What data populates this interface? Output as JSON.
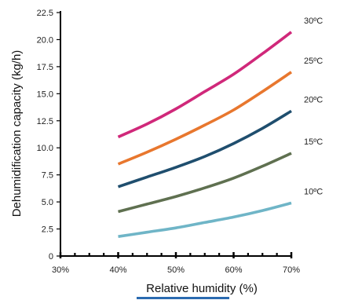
{
  "chart_data": {
    "type": "line",
    "xlabel": "Relative humidity (%)",
    "ylabel": "Dehumidification capacity (kg/h)",
    "xlim": [
      30,
      70
    ],
    "ylim": [
      0,
      22.5
    ],
    "x_tick_labels": [
      "30%",
      "40%",
      "50%",
      "60%",
      "70%"
    ],
    "y_tick_labels": [
      "0",
      "2.5",
      "5.0",
      "7.5",
      "10.0",
      "12.5",
      "15.0",
      "17.5",
      "20.0",
      "22.5"
    ],
    "grid": false,
    "x": [
      40,
      45,
      50,
      55,
      60,
      65,
      70
    ],
    "series": [
      {
        "name": "30ºC",
        "color": "#d0287a",
        "values": [
          11.0,
          12.2,
          13.6,
          15.2,
          16.8,
          18.7,
          20.7
        ]
      },
      {
        "name": "25ºC",
        "color": "#e8772e",
        "values": [
          8.5,
          9.6,
          10.8,
          12.1,
          13.5,
          15.2,
          17.0
        ]
      },
      {
        "name": "20ºC",
        "color": "#1f4e6e",
        "values": [
          6.4,
          7.3,
          8.2,
          9.2,
          10.4,
          11.8,
          13.4
        ]
      },
      {
        "name": "15ºC",
        "color": "#5f7050",
        "values": [
          4.1,
          4.8,
          5.5,
          6.3,
          7.2,
          8.3,
          9.5
        ]
      },
      {
        "name": "10ºC",
        "color": "#6fb5c7",
        "values": [
          1.8,
          2.2,
          2.6,
          3.1,
          3.6,
          4.2,
          4.9
        ]
      }
    ]
  }
}
